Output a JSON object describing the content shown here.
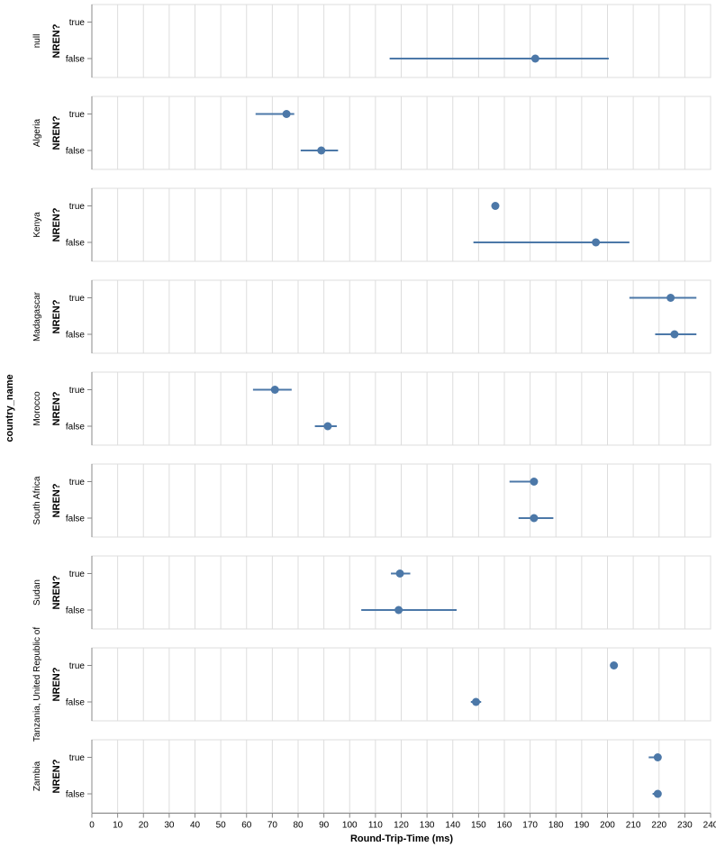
{
  "chart_data": {
    "type": "errorbar",
    "xlabel": "Round-Trip-Time (ms)",
    "facet_label": "country_name",
    "ylabel": "NREN?",
    "categories": [
      "true",
      "false"
    ],
    "xlim": [
      0,
      240
    ],
    "xticks": [
      0,
      10,
      20,
      30,
      40,
      50,
      60,
      70,
      80,
      90,
      100,
      110,
      120,
      130,
      140,
      150,
      160,
      170,
      180,
      190,
      200,
      210,
      220,
      230,
      240
    ],
    "grid": true,
    "colors": {
      "mark": "#4c78a8",
      "grid": "#dddddd",
      "frame": "#dddddd",
      "axis": "#888888"
    },
    "facets": [
      {
        "name": "null",
        "points": [
          {
            "nren": "false",
            "mean": 172,
            "low": 115.5,
            "high": 200.5
          }
        ]
      },
      {
        "name": "Algeria",
        "points": [
          {
            "nren": "true",
            "mean": 75.5,
            "low": 63.5,
            "high": 78.5
          },
          {
            "nren": "false",
            "mean": 89,
            "low": 81,
            "high": 95.5
          }
        ]
      },
      {
        "name": "Kenya",
        "points": [
          {
            "nren": "true",
            "mean": 156.5,
            "low": 156.5,
            "high": 156.5
          },
          {
            "nren": "false",
            "mean": 195.5,
            "low": 148,
            "high": 208.5
          }
        ]
      },
      {
        "name": "Madagascar",
        "points": [
          {
            "nren": "true",
            "mean": 224.5,
            "low": 208.5,
            "high": 234.5
          },
          {
            "nren": "false",
            "mean": 226,
            "low": 218.5,
            "high": 234.5
          }
        ]
      },
      {
        "name": "Morocco",
        "points": [
          {
            "nren": "true",
            "mean": 71,
            "low": 62.5,
            "high": 77.5
          },
          {
            "nren": "false",
            "mean": 91.5,
            "low": 86.5,
            "high": 95
          }
        ]
      },
      {
        "name": "South Africa",
        "points": [
          {
            "nren": "true",
            "mean": 171.5,
            "low": 162,
            "high": 171.5
          },
          {
            "nren": "false",
            "mean": 171.5,
            "low": 165.5,
            "high": 179
          }
        ]
      },
      {
        "name": "Sudan",
        "points": [
          {
            "nren": "true",
            "mean": 119.5,
            "low": 116,
            "high": 123.5
          },
          {
            "nren": "false",
            "mean": 119,
            "low": 104.5,
            "high": 141.5
          }
        ]
      },
      {
        "name": "Tanzania, United Republic of",
        "points": [
          {
            "nren": "true",
            "mean": 202.5,
            "low": 202.5,
            "high": 202.5
          },
          {
            "nren": "false",
            "mean": 149,
            "low": 147,
            "high": 151
          }
        ]
      },
      {
        "name": "Zambia",
        "points": [
          {
            "nren": "true",
            "mean": 219.5,
            "low": 216,
            "high": 220
          },
          {
            "nren": "false",
            "mean": 219.5,
            "low": 217.5,
            "high": 220.5
          }
        ]
      }
    ]
  }
}
